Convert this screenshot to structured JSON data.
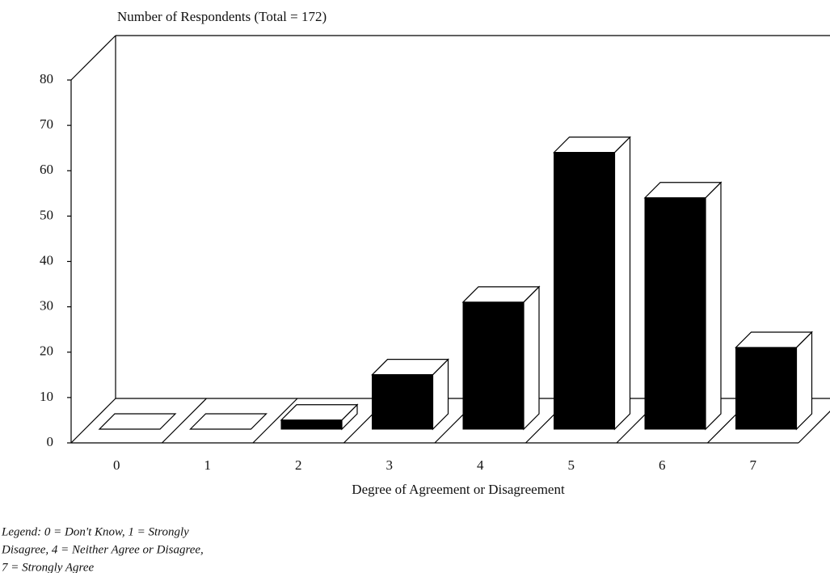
{
  "chart_data": {
    "type": "bar",
    "title": "Number of Respondents (Total = 172)",
    "x_label": "Degree of Agreement or Disagreement",
    "categories": [
      "0",
      "1",
      "2",
      "3",
      "4",
      "5",
      "6",
      "7"
    ],
    "values": [
      0,
      0,
      2,
      12,
      28,
      61,
      51,
      18
    ],
    "color": "#000000",
    "ylim": [
      0,
      80
    ],
    "yticks": [
      0,
      10,
      20,
      30,
      40,
      50,
      60,
      70,
      80
    ],
    "legend_note": [
      "Legend: 0 = Don't Know, 1 = Strongly",
      "Disagree, 4 = Neither Agree or Disagree,",
      "7 = Strongly Agree"
    ]
  }
}
